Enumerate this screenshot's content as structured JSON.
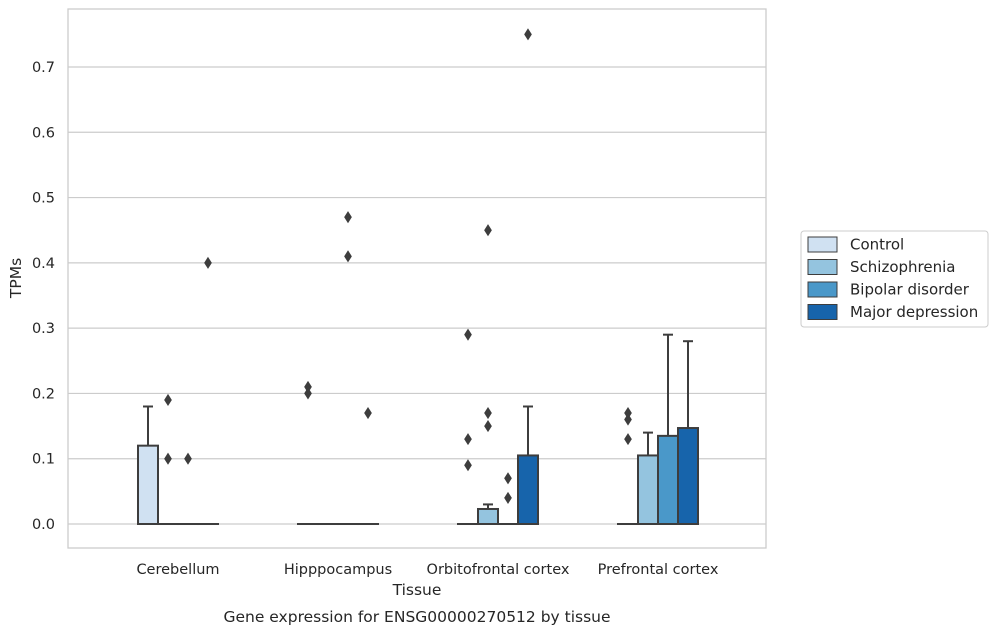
{
  "chart_data": {
    "type": "box",
    "caption": "Gene expression for ENSG00000270512 by tissue",
    "xlabel": "Tissue",
    "ylabel": "TPMs",
    "ylim": [
      -0.036,
      0.79
    ],
    "yticks": [
      0.0,
      0.1,
      0.2,
      0.3,
      0.4,
      0.5,
      0.6,
      0.7
    ],
    "ytick_labels": [
      "0.0",
      "0.1",
      "0.2",
      "0.3",
      "0.4",
      "0.5",
      "0.6",
      "0.7"
    ],
    "grid": "horizontal",
    "legend_position": "right",
    "categories": [
      "Cerebellum",
      "Hipppocampus",
      "Orbitofrontal cortex",
      "Prefrontal cortex"
    ],
    "series": [
      {
        "name": "Control",
        "color": "#d0e1f2",
        "boxes": [
          {
            "q1": 0.0,
            "median": 0.0,
            "q3": 0.12,
            "whisker_low": 0.0,
            "whisker_high": 0.18,
            "outliers": []
          },
          {
            "q1": 0.0,
            "median": 0.0,
            "q3": 0.0,
            "whisker_low": 0.0,
            "whisker_high": 0.0,
            "outliers": [
              0.2,
              0.21
            ]
          },
          {
            "q1": 0.0,
            "median": 0.0,
            "q3": 0.0,
            "whisker_low": 0.0,
            "whisker_high": 0.0,
            "outliers": [
              0.09,
              0.13,
              0.29
            ]
          },
          {
            "q1": 0.0,
            "median": 0.0,
            "q3": 0.0,
            "whisker_low": 0.0,
            "whisker_high": 0.0,
            "outliers": [
              0.13,
              0.16,
              0.17
            ]
          }
        ]
      },
      {
        "name": "Schizophrenia",
        "color": "#94c4df",
        "boxes": [
          {
            "q1": 0.0,
            "median": 0.0,
            "q3": 0.0,
            "whisker_low": 0.0,
            "whisker_high": 0.0,
            "outliers": [
              0.1,
              0.19
            ]
          },
          {
            "q1": 0.0,
            "median": 0.0,
            "q3": 0.0,
            "whisker_low": 0.0,
            "whisker_high": 0.0,
            "outliers": []
          },
          {
            "q1": 0.0,
            "median": 0.0,
            "q3": 0.023,
            "whisker_low": 0.0,
            "whisker_high": 0.03,
            "outliers": [
              0.15,
              0.17,
              0.45
            ]
          },
          {
            "q1": 0.0,
            "median": 0.0,
            "q3": 0.105,
            "whisker_low": 0.0,
            "whisker_high": 0.14,
            "outliers": []
          }
        ]
      },
      {
        "name": "Bipolar disorder",
        "color": "#4a98c9",
        "boxes": [
          {
            "q1": 0.0,
            "median": 0.0,
            "q3": 0.0,
            "whisker_low": 0.0,
            "whisker_high": 0.0,
            "outliers": [
              0.1
            ]
          },
          {
            "q1": 0.0,
            "median": 0.0,
            "q3": 0.0,
            "whisker_low": 0.0,
            "whisker_high": 0.0,
            "outliers": [
              0.41,
              0.47
            ]
          },
          {
            "q1": 0.0,
            "median": 0.0,
            "q3": 0.0,
            "whisker_low": 0.0,
            "whisker_high": 0.0,
            "outliers": [
              0.04,
              0.07
            ]
          },
          {
            "q1": 0.0,
            "median": 0.0,
            "q3": 0.135,
            "whisker_low": 0.0,
            "whisker_high": 0.29,
            "outliers": []
          }
        ]
      },
      {
        "name": "Major depression",
        "color": "#1764ab",
        "boxes": [
          {
            "q1": 0.0,
            "median": 0.0,
            "q3": 0.0,
            "whisker_low": 0.0,
            "whisker_high": 0.0,
            "outliers": [
              0.4
            ]
          },
          {
            "q1": 0.0,
            "median": 0.0,
            "q3": 0.0,
            "whisker_low": 0.0,
            "whisker_high": 0.0,
            "outliers": [
              0.17
            ]
          },
          {
            "q1": 0.0,
            "median": 0.0,
            "q3": 0.105,
            "whisker_low": 0.0,
            "whisker_high": 0.18,
            "outliers": [
              0.75
            ]
          },
          {
            "q1": 0.0,
            "median": 0.0,
            "q3": 0.147,
            "whisker_low": 0.0,
            "whisker_high": 0.28,
            "outliers": []
          }
        ]
      }
    ]
  }
}
